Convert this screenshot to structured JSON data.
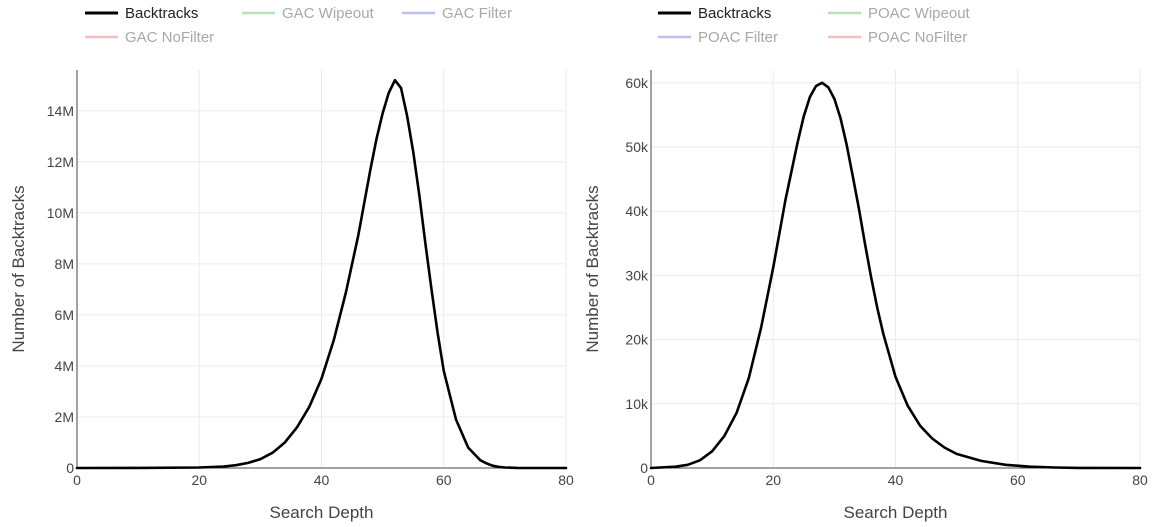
{
  "chart_data": [
    {
      "type": "line",
      "xlabel": "Search Depth",
      "ylabel": "Number of Backtracks",
      "xlim": [
        0,
        80
      ],
      "ylim": [
        0,
        15600000
      ],
      "x_ticks": [
        "0",
        "20",
        "40",
        "60",
        "80"
      ],
      "y_ticks": [
        "0",
        "2M",
        "4M",
        "6M",
        "8M",
        "10M",
        "12M",
        "14M"
      ],
      "grid": true,
      "legend_position": "top-left",
      "legend": [
        {
          "name": "Backtracks",
          "color": "#000000",
          "active": true
        },
        {
          "name": "GAC Wipeout",
          "color": "#7fc97f",
          "active": false
        },
        {
          "name": "GAC Filter",
          "color": "#8c8ce8",
          "active": false
        },
        {
          "name": "GAC NoFilter",
          "color": "#f08c8c",
          "active": false
        }
      ],
      "series": [
        {
          "name": "Backtracks",
          "color": "#000000",
          "x": [
            0,
            10,
            20,
            24,
            26,
            28,
            30,
            32,
            34,
            36,
            38,
            40,
            42,
            44,
            46,
            47,
            48,
            49,
            50,
            51,
            52,
            53,
            54,
            55,
            56,
            57,
            58,
            59,
            60,
            62,
            64,
            66,
            67,
            68,
            69,
            70,
            72,
            74,
            80
          ],
          "y": [
            0,
            5000,
            20000,
            60000,
            110000,
            200000,
            350000,
            600000,
            1000000,
            1600000,
            2400000,
            3500000,
            5000000,
            6900000,
            9100000,
            10400000,
            11700000,
            12900000,
            13900000,
            14700000,
            15200000,
            14900000,
            13800000,
            12400000,
            10700000,
            8800000,
            7000000,
            5300000,
            3800000,
            1900000,
            800000,
            300000,
            180000,
            90000,
            45000,
            20000,
            5000,
            1000,
            0
          ]
        }
      ]
    },
    {
      "type": "line",
      "xlabel": "Search Depth",
      "ylabel": "Number of Backtracks",
      "xlim": [
        0,
        80
      ],
      "ylim": [
        0,
        62000
      ],
      "x_ticks": [
        "0",
        "20",
        "40",
        "60",
        "80"
      ],
      "y_ticks": [
        "0",
        "10k",
        "20k",
        "30k",
        "40k",
        "50k",
        "60k"
      ],
      "grid": true,
      "legend_position": "top-left",
      "legend": [
        {
          "name": "Backtracks",
          "color": "#000000",
          "active": true
        },
        {
          "name": "POAC Wipeout",
          "color": "#7fc97f",
          "active": false
        },
        {
          "name": "POAC Filter",
          "color": "#8c8ce8",
          "active": false
        },
        {
          "name": "POAC NoFilter",
          "color": "#f08c8c",
          "active": false
        }
      ],
      "series": [
        {
          "name": "Backtracks",
          "color": "#000000",
          "x": [
            0,
            4,
            6,
            8,
            10,
            12,
            14,
            16,
            18,
            20,
            22,
            24,
            25,
            26,
            27,
            28,
            29,
            30,
            31,
            32,
            33,
            34,
            35,
            36,
            37,
            38,
            40,
            42,
            44,
            46,
            48,
            50,
            54,
            58,
            62,
            66,
            70,
            80
          ],
          "y": [
            0,
            200,
            500,
            1200,
            2600,
            5000,
            8600,
            14000,
            21800,
            31300,
            41800,
            50800,
            54800,
            57800,
            59500,
            60000,
            59300,
            57500,
            54500,
            50400,
            45500,
            40500,
            35000,
            29800,
            25000,
            20900,
            14200,
            9700,
            6600,
            4600,
            3200,
            2200,
            1100,
            500,
            200,
            80,
            20,
            0
          ]
        }
      ]
    }
  ]
}
